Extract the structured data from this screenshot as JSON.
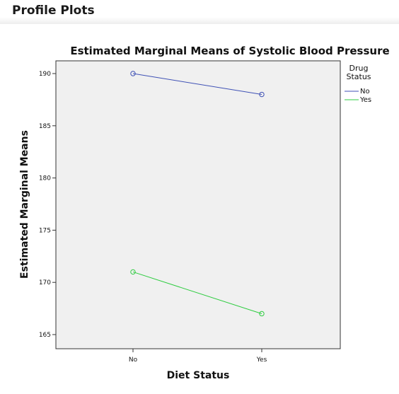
{
  "page": {
    "heading": "Profile Plots"
  },
  "chart_data": {
    "type": "line",
    "title": "Estimated Marginal Means of Systolic Blood Pressure",
    "xlabel": "Diet Status",
    "ylabel": "Estimated Marginal Means",
    "categories": [
      "No",
      "Yes"
    ],
    "yticks": [
      165,
      170,
      175,
      180,
      185,
      190
    ],
    "ylim": [
      163.5,
      191.5
    ],
    "grid": false,
    "legend": {
      "title": "Drug Status",
      "placement": "top-right"
    },
    "series": [
      {
        "name": "No",
        "values": [
          190,
          188
        ],
        "color": "#3f51b5"
      },
      {
        "name": "Yes",
        "values": [
          171,
          167
        ],
        "color": "#2ecc40"
      }
    ],
    "plot_background": "#f0f0f0"
  }
}
